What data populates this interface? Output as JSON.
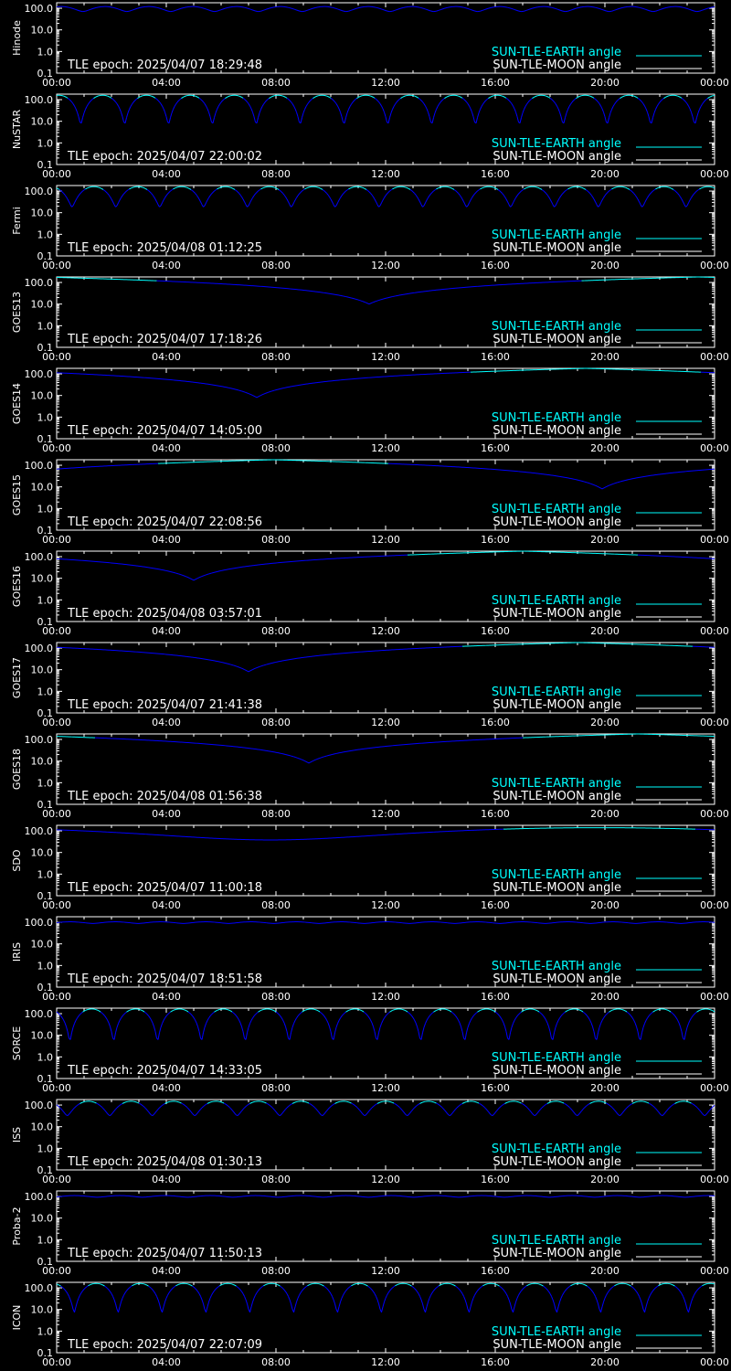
{
  "colors": {
    "background": "#000000",
    "axes": "#ffffff",
    "earth_angle": "#00ffff",
    "moon_angle": "#ffffff",
    "curve_low": "#0000ff",
    "curve_high": "#00ffff"
  },
  "legend": {
    "earth_label": "SUN-TLE-EARTH angle",
    "moon_label": "SUN-TLE-MOON angle"
  },
  "x_ticks": [
    "00:00",
    "04:00",
    "08:00",
    "12:00",
    "16:00",
    "20:00",
    "00:00"
  ],
  "y_ticks": [
    "100.0",
    "10.0",
    "1.0",
    "0.1"
  ],
  "chart_data": [
    {
      "type": "line",
      "satellite": "Hinode",
      "epoch_text": "TLE epoch: 2025/04/07 18:29:48",
      "x_unit": "hours",
      "xlim": [
        0,
        24
      ],
      "ylim": [
        0.1,
        180
      ],
      "y_scale": "log",
      "legend_position": "bottom-right",
      "series": [
        {
          "name": "SUN-TLE-EARTH angle",
          "kind": "orbital",
          "period_hours": 1.6,
          "min": 70,
          "max": 120,
          "phase": 0.4
        }
      ]
    },
    {
      "type": "line",
      "satellite": "NuSTAR",
      "epoch_text": "TLE epoch: 2025/04/07 22:00:02",
      "x_unit": "hours",
      "xlim": [
        0,
        24
      ],
      "ylim": [
        0.1,
        180
      ],
      "y_scale": "log",
      "legend_position": "bottom-right",
      "series": [
        {
          "name": "SUN-TLE-EARTH angle",
          "kind": "orbital",
          "period_hours": 1.6,
          "min": 7,
          "max": 160,
          "phase": 0.45
        }
      ]
    },
    {
      "type": "line",
      "satellite": "Fermi",
      "epoch_text": "TLE epoch: 2025/04/08 01:12:25",
      "x_unit": "hours",
      "xlim": [
        0,
        24
      ],
      "ylim": [
        0.1,
        180
      ],
      "y_scale": "log",
      "legend_position": "bottom-right",
      "series": [
        {
          "name": "SUN-TLE-EARTH angle",
          "kind": "orbital",
          "period_hours": 1.6,
          "min": 18,
          "max": 160,
          "phase": 0.65
        }
      ]
    },
    {
      "type": "line",
      "satellite": "GOES13",
      "epoch_text": "TLE epoch: 2025/04/07 17:18:26",
      "x_unit": "hours",
      "xlim": [
        0,
        24
      ],
      "ylim": [
        0.1,
        180
      ],
      "y_scale": "log",
      "legend_position": "bottom-right",
      "series": [
        {
          "name": "SUN-TLE-EARTH angle",
          "kind": "geo",
          "min_time_hours": 11.4,
          "min": 10
        }
      ]
    },
    {
      "type": "line",
      "satellite": "GOES14",
      "epoch_text": "TLE epoch: 2025/04/07 14:05:00",
      "x_unit": "hours",
      "xlim": [
        0,
        24
      ],
      "ylim": [
        0.1,
        180
      ],
      "y_scale": "log",
      "legend_position": "bottom-right",
      "series": [
        {
          "name": "SUN-TLE-EARTH angle",
          "kind": "geo",
          "min_time_hours": 7.3,
          "min": 8
        }
      ]
    },
    {
      "type": "line",
      "satellite": "GOES15",
      "epoch_text": "TLE epoch: 2025/04/07 22:08:56",
      "x_unit": "hours",
      "xlim": [
        0,
        24
      ],
      "ylim": [
        0.1,
        180
      ],
      "y_scale": "log",
      "legend_position": "bottom-right",
      "series": [
        {
          "name": "SUN-TLE-EARTH angle",
          "kind": "geo",
          "min_time_hours": 19.9,
          "min": 8
        }
      ]
    },
    {
      "type": "line",
      "satellite": "GOES16",
      "epoch_text": "TLE epoch: 2025/04/08 03:57:01",
      "x_unit": "hours",
      "xlim": [
        0,
        24
      ],
      "ylim": [
        0.1,
        180
      ],
      "y_scale": "log",
      "legend_position": "bottom-right",
      "series": [
        {
          "name": "SUN-TLE-EARTH angle",
          "kind": "geo",
          "min_time_hours": 5.0,
          "min": 8
        }
      ]
    },
    {
      "type": "line",
      "satellite": "GOES17",
      "epoch_text": "TLE epoch: 2025/04/07 21:41:38",
      "x_unit": "hours",
      "xlim": [
        0,
        24
      ],
      "ylim": [
        0.1,
        180
      ],
      "y_scale": "log",
      "legend_position": "bottom-right",
      "series": [
        {
          "name": "SUN-TLE-EARTH angle",
          "kind": "geo",
          "min_time_hours": 7.0,
          "min": 8
        }
      ]
    },
    {
      "type": "line",
      "satellite": "GOES18",
      "epoch_text": "TLE epoch: 2025/04/08 01:56:38",
      "x_unit": "hours",
      "xlim": [
        0,
        24
      ],
      "ylim": [
        0.1,
        180
      ],
      "y_scale": "log",
      "legend_position": "bottom-right",
      "series": [
        {
          "name": "SUN-TLE-EARTH angle",
          "kind": "geo",
          "min_time_hours": 9.2,
          "min": 8
        }
      ]
    },
    {
      "type": "line",
      "satellite": "SDO",
      "epoch_text": "TLE epoch: 2025/04/07 11:00:18",
      "x_unit": "hours",
      "xlim": [
        0,
        24
      ],
      "ylim": [
        0.1,
        180
      ],
      "y_scale": "log",
      "legend_position": "bottom-right",
      "series": [
        {
          "name": "SUN-TLE-EARTH angle",
          "kind": "smooth",
          "min_time_hours": 7.8,
          "min": 38,
          "max": 140
        }
      ]
    },
    {
      "type": "line",
      "satellite": "IRIS",
      "epoch_text": "TLE epoch: 2025/04/07 18:51:58",
      "x_unit": "hours",
      "xlim": [
        0,
        24
      ],
      "ylim": [
        0.1,
        180
      ],
      "y_scale": "log",
      "legend_position": "bottom-right",
      "series": [
        {
          "name": "SUN-TLE-EARTH angle",
          "kind": "orbital",
          "period_hours": 1.65,
          "min": 88,
          "max": 105,
          "phase": 0.2
        }
      ]
    },
    {
      "type": "line",
      "satellite": "SORCE",
      "epoch_text": "TLE epoch: 2025/04/07 14:33:05",
      "x_unit": "hours",
      "xlim": [
        0,
        24
      ],
      "ylim": [
        0.1,
        180
      ],
      "y_scale": "log",
      "legend_position": "bottom-right",
      "series": [
        {
          "name": "SUN-TLE-EARTH angle",
          "kind": "orbital",
          "period_hours": 1.6,
          "min": 5,
          "max": 165,
          "phase": 0.7
        }
      ]
    },
    {
      "type": "line",
      "satellite": "ISS",
      "epoch_text": "TLE epoch: 2025/04/08 01:30:13",
      "x_unit": "hours",
      "xlim": [
        0,
        24
      ],
      "ylim": [
        0.1,
        180
      ],
      "y_scale": "log",
      "legend_position": "bottom-right",
      "series": [
        {
          "name": "SUN-TLE-EARTH angle",
          "kind": "orbital",
          "period_hours": 1.55,
          "min": 32,
          "max": 150,
          "phase": 0.75
        }
      ]
    },
    {
      "type": "line",
      "satellite": "Proba-2",
      "epoch_text": "TLE epoch: 2025/04/07 11:50:13",
      "x_unit": "hours",
      "xlim": [
        0,
        24
      ],
      "ylim": [
        0.1,
        180
      ],
      "y_scale": "log",
      "legend_position": "bottom-right",
      "series": [
        {
          "name": "SUN-TLE-EARTH angle",
          "kind": "orbital",
          "period_hours": 1.65,
          "min": 92,
          "max": 110,
          "phase": 0.1
        }
      ]
    },
    {
      "type": "line",
      "satellite": "ICON",
      "epoch_text": "TLE epoch: 2025/04/07 22:07:09",
      "x_unit": "hours",
      "xlim": [
        0,
        24
      ],
      "ylim": [
        0.1,
        180
      ],
      "y_scale": "log",
      "legend_position": "bottom-right",
      "series": [
        {
          "name": "SUN-TLE-EARTH angle",
          "kind": "orbital",
          "period_hours": 1.6,
          "min": 7,
          "max": 160,
          "phase": 0.6
        }
      ]
    }
  ]
}
